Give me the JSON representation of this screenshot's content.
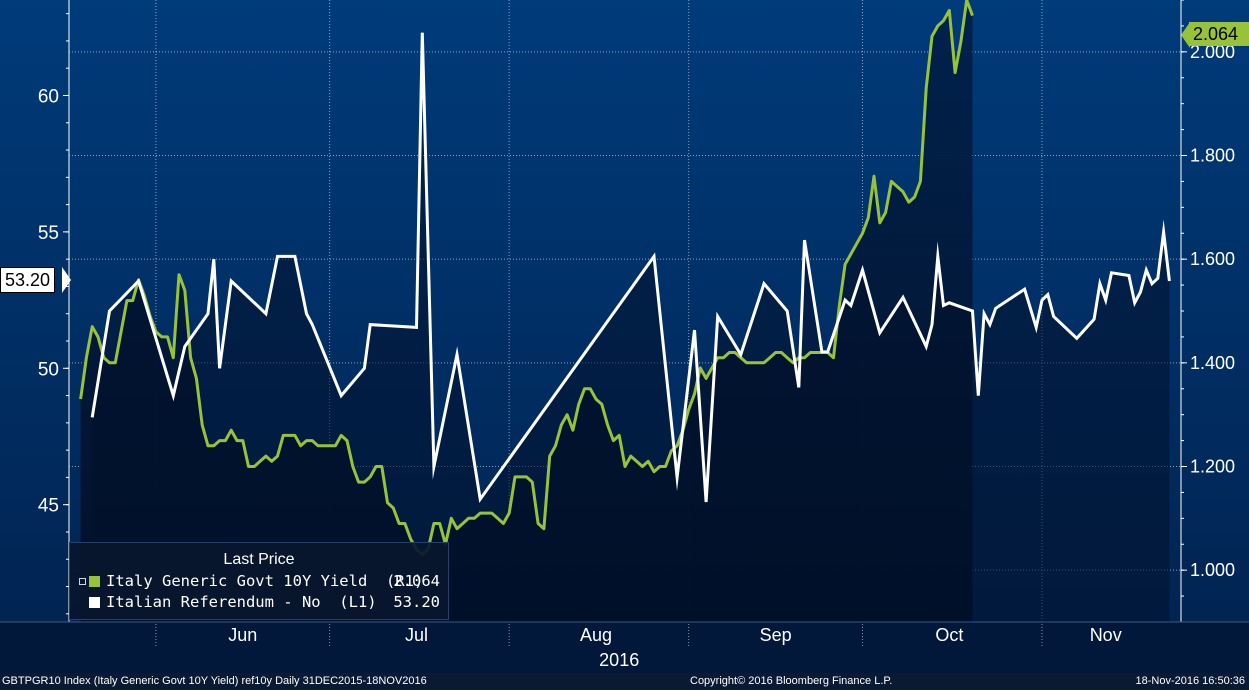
{
  "chart_data": {
    "type": "line",
    "year_label": "2016",
    "months": [
      "Jun",
      "Jul",
      "Aug",
      "Sep",
      "Oct",
      "Nov"
    ],
    "left_axis": {
      "ylim": [
        40.7,
        63.5
      ],
      "ticks": [
        "45",
        "50",
        "55",
        "60"
      ],
      "tick_values": [
        45,
        50,
        55,
        60
      ]
    },
    "right_axis": {
      "ylim": [
        0.9,
        2.1
      ],
      "ticks": [
        "1.000",
        "1.200",
        "1.400",
        "1.600",
        "1.800",
        "2.000"
      ],
      "tick_values": [
        1.0,
        1.2,
        1.4,
        1.6,
        1.8,
        2.0
      ]
    },
    "colors": {
      "yield": "#97c23a",
      "referendum": "#ffffff",
      "background_top": "#003b7a",
      "background_bottom": "#01183a"
    },
    "series": [
      {
        "name": "Italy Generic Govt 10Y Yield",
        "axis": "right",
        "last_value": "2.064",
        "x_start": "2016-05-19",
        "x_step_days": 1,
        "values": [
          1.33,
          1.41,
          1.47,
          1.45,
          1.41,
          1.4,
          1.4,
          1.46,
          1.52,
          1.52,
          1.56,
          1.53,
          1.49,
          1.46,
          1.45,
          1.45,
          1.41,
          1.57,
          1.54,
          1.41,
          1.37,
          1.28,
          1.24,
          1.24,
          1.25,
          1.25,
          1.27,
          1.25,
          1.25,
          1.2,
          1.2,
          1.21,
          1.22,
          1.21,
          1.22,
          1.26,
          1.26,
          1.26,
          1.24,
          1.25,
          1.25,
          1.24,
          1.24,
          1.24,
          1.24,
          1.26,
          1.25,
          1.2,
          1.17,
          1.17,
          1.18,
          1.2,
          1.2,
          1.13,
          1.12,
          1.09,
          1.09,
          1.06,
          1.04,
          1.03,
          1.04,
          1.09,
          1.09,
          1.05,
          1.1,
          1.08,
          1.09,
          1.1,
          1.1,
          1.11,
          1.11,
          1.11,
          1.1,
          1.09,
          1.11,
          1.18,
          1.18,
          1.18,
          1.17,
          1.09,
          1.08,
          1.22,
          1.24,
          1.28,
          1.3,
          1.27,
          1.32,
          1.35,
          1.35,
          1.33,
          1.32,
          1.28,
          1.25,
          1.26,
          1.2,
          1.22,
          1.21,
          1.2,
          1.21,
          1.19,
          1.2,
          1.2,
          1.23,
          1.24,
          1.27,
          1.31,
          1.34,
          1.39,
          1.37,
          1.39,
          1.41,
          1.41,
          1.42,
          1.42,
          1.41,
          1.4,
          1.4,
          1.4,
          1.4,
          1.41,
          1.42,
          1.42,
          1.41,
          1.4,
          1.41,
          1.41,
          1.42,
          1.42,
          1.42,
          1.42,
          1.41,
          1.51,
          1.59,
          1.61,
          1.63,
          1.65,
          1.68,
          1.76,
          1.67,
          1.69,
          1.75,
          1.74,
          1.73,
          1.71,
          1.72,
          1.75,
          1.93,
          2.03,
          2.05,
          2.06,
          2.08,
          1.96,
          2.02,
          2.1,
          2.07
        ]
      },
      {
        "name": "Italian Referendum - No",
        "axis": "left",
        "last_value": "53.20",
        "points": [
          [
            "2016-05-21",
            48.2
          ],
          [
            "2016-05-24",
            52.1
          ],
          [
            "2016-05-29",
            53.2
          ],
          [
            "2016-06-04",
            49.0
          ],
          [
            "2016-06-06",
            50.8
          ],
          [
            "2016-06-10",
            52.0
          ],
          [
            "2016-06-11",
            54.0
          ],
          [
            "2016-06-12",
            50.0
          ],
          [
            "2016-06-14",
            53.2
          ],
          [
            "2016-06-20",
            52.0
          ],
          [
            "2016-06-22",
            54.1
          ],
          [
            "2016-06-25",
            54.1
          ],
          [
            "2016-06-27",
            52.0
          ],
          [
            "2016-06-28",
            51.6
          ],
          [
            "2016-07-03",
            49.0
          ],
          [
            "2016-07-07",
            50.0
          ],
          [
            "2016-07-08",
            51.6
          ],
          [
            "2016-07-16",
            51.5
          ],
          [
            "2016-07-17",
            62.3
          ],
          [
            "2016-07-19",
            46.4
          ],
          [
            "2016-07-23",
            50.5
          ],
          [
            "2016-07-27",
            45.2
          ],
          [
            "2016-08-26",
            54.1
          ],
          [
            "2016-08-30",
            46.0
          ],
          [
            "2016-09-02",
            51.4
          ],
          [
            "2016-09-04",
            45.1
          ],
          [
            "2016-09-06",
            51.9
          ],
          [
            "2016-09-10",
            50.5
          ],
          [
            "2016-09-14",
            53.1
          ],
          [
            "2016-09-18",
            52.1
          ],
          [
            "2016-09-20",
            49.3
          ],
          [
            "2016-09-21",
            54.7
          ],
          [
            "2016-09-24",
            50.6
          ],
          [
            "2016-09-25",
            50.6
          ],
          [
            "2016-09-28",
            52.5
          ],
          [
            "2016-09-29",
            52.3
          ],
          [
            "2016-10-01",
            53.6
          ],
          [
            "2016-10-04",
            51.3
          ],
          [
            "2016-10-08",
            52.6
          ],
          [
            "2016-10-12",
            50.8
          ],
          [
            "2016-10-13",
            51.6
          ],
          [
            "2016-10-14",
            54.1
          ],
          [
            "2016-10-15",
            52.3
          ],
          [
            "2016-10-16",
            52.4
          ],
          [
            "2016-10-20",
            52.1
          ],
          [
            "2016-10-21",
            49.0
          ],
          [
            "2016-10-22",
            52.0
          ],
          [
            "2016-10-23",
            51.6
          ],
          [
            "2016-10-24",
            52.2
          ],
          [
            "2016-10-29",
            52.9
          ],
          [
            "2016-10-31",
            51.5
          ],
          [
            "2016-11-01",
            52.5
          ],
          [
            "2016-11-02",
            52.7
          ],
          [
            "2016-11-03",
            51.9
          ],
          [
            "2016-11-07",
            51.1
          ],
          [
            "2016-11-10",
            51.8
          ],
          [
            "2016-11-11",
            53.1
          ],
          [
            "2016-11-12",
            52.5
          ],
          [
            "2016-11-13",
            53.5
          ],
          [
            "2016-11-16",
            53.4
          ],
          [
            "2016-11-17",
            52.4
          ],
          [
            "2016-11-18",
            52.8
          ],
          [
            "2016-11-19",
            53.6
          ],
          [
            "2016-11-20",
            53.1
          ],
          [
            "2016-11-21",
            53.3
          ],
          [
            "2016-11-22",
            55.0
          ],
          [
            "2016-11-23",
            53.2
          ]
        ]
      }
    ],
    "legend": {
      "title": "Last Price",
      "placement": "bottom-left"
    }
  },
  "legend_rows": [
    {
      "label": "Italy Generic Govt 10Y Yield  (R1)",
      "value": "2.064"
    },
    {
      "label": "Italian Referendum - No  (L1)",
      "value": "53.20"
    }
  ],
  "tags": {
    "left": "53.20",
    "right": "2.064"
  },
  "footer": {
    "left": "GBTPGR10 Index (Italy Generic Govt 10Y Yield) ref10y  Daily 31DEC2015-18NOV2016",
    "center": "Copyright© 2016 Bloomberg Finance L.P.",
    "right": "18-Nov-2016 16:50:36"
  }
}
